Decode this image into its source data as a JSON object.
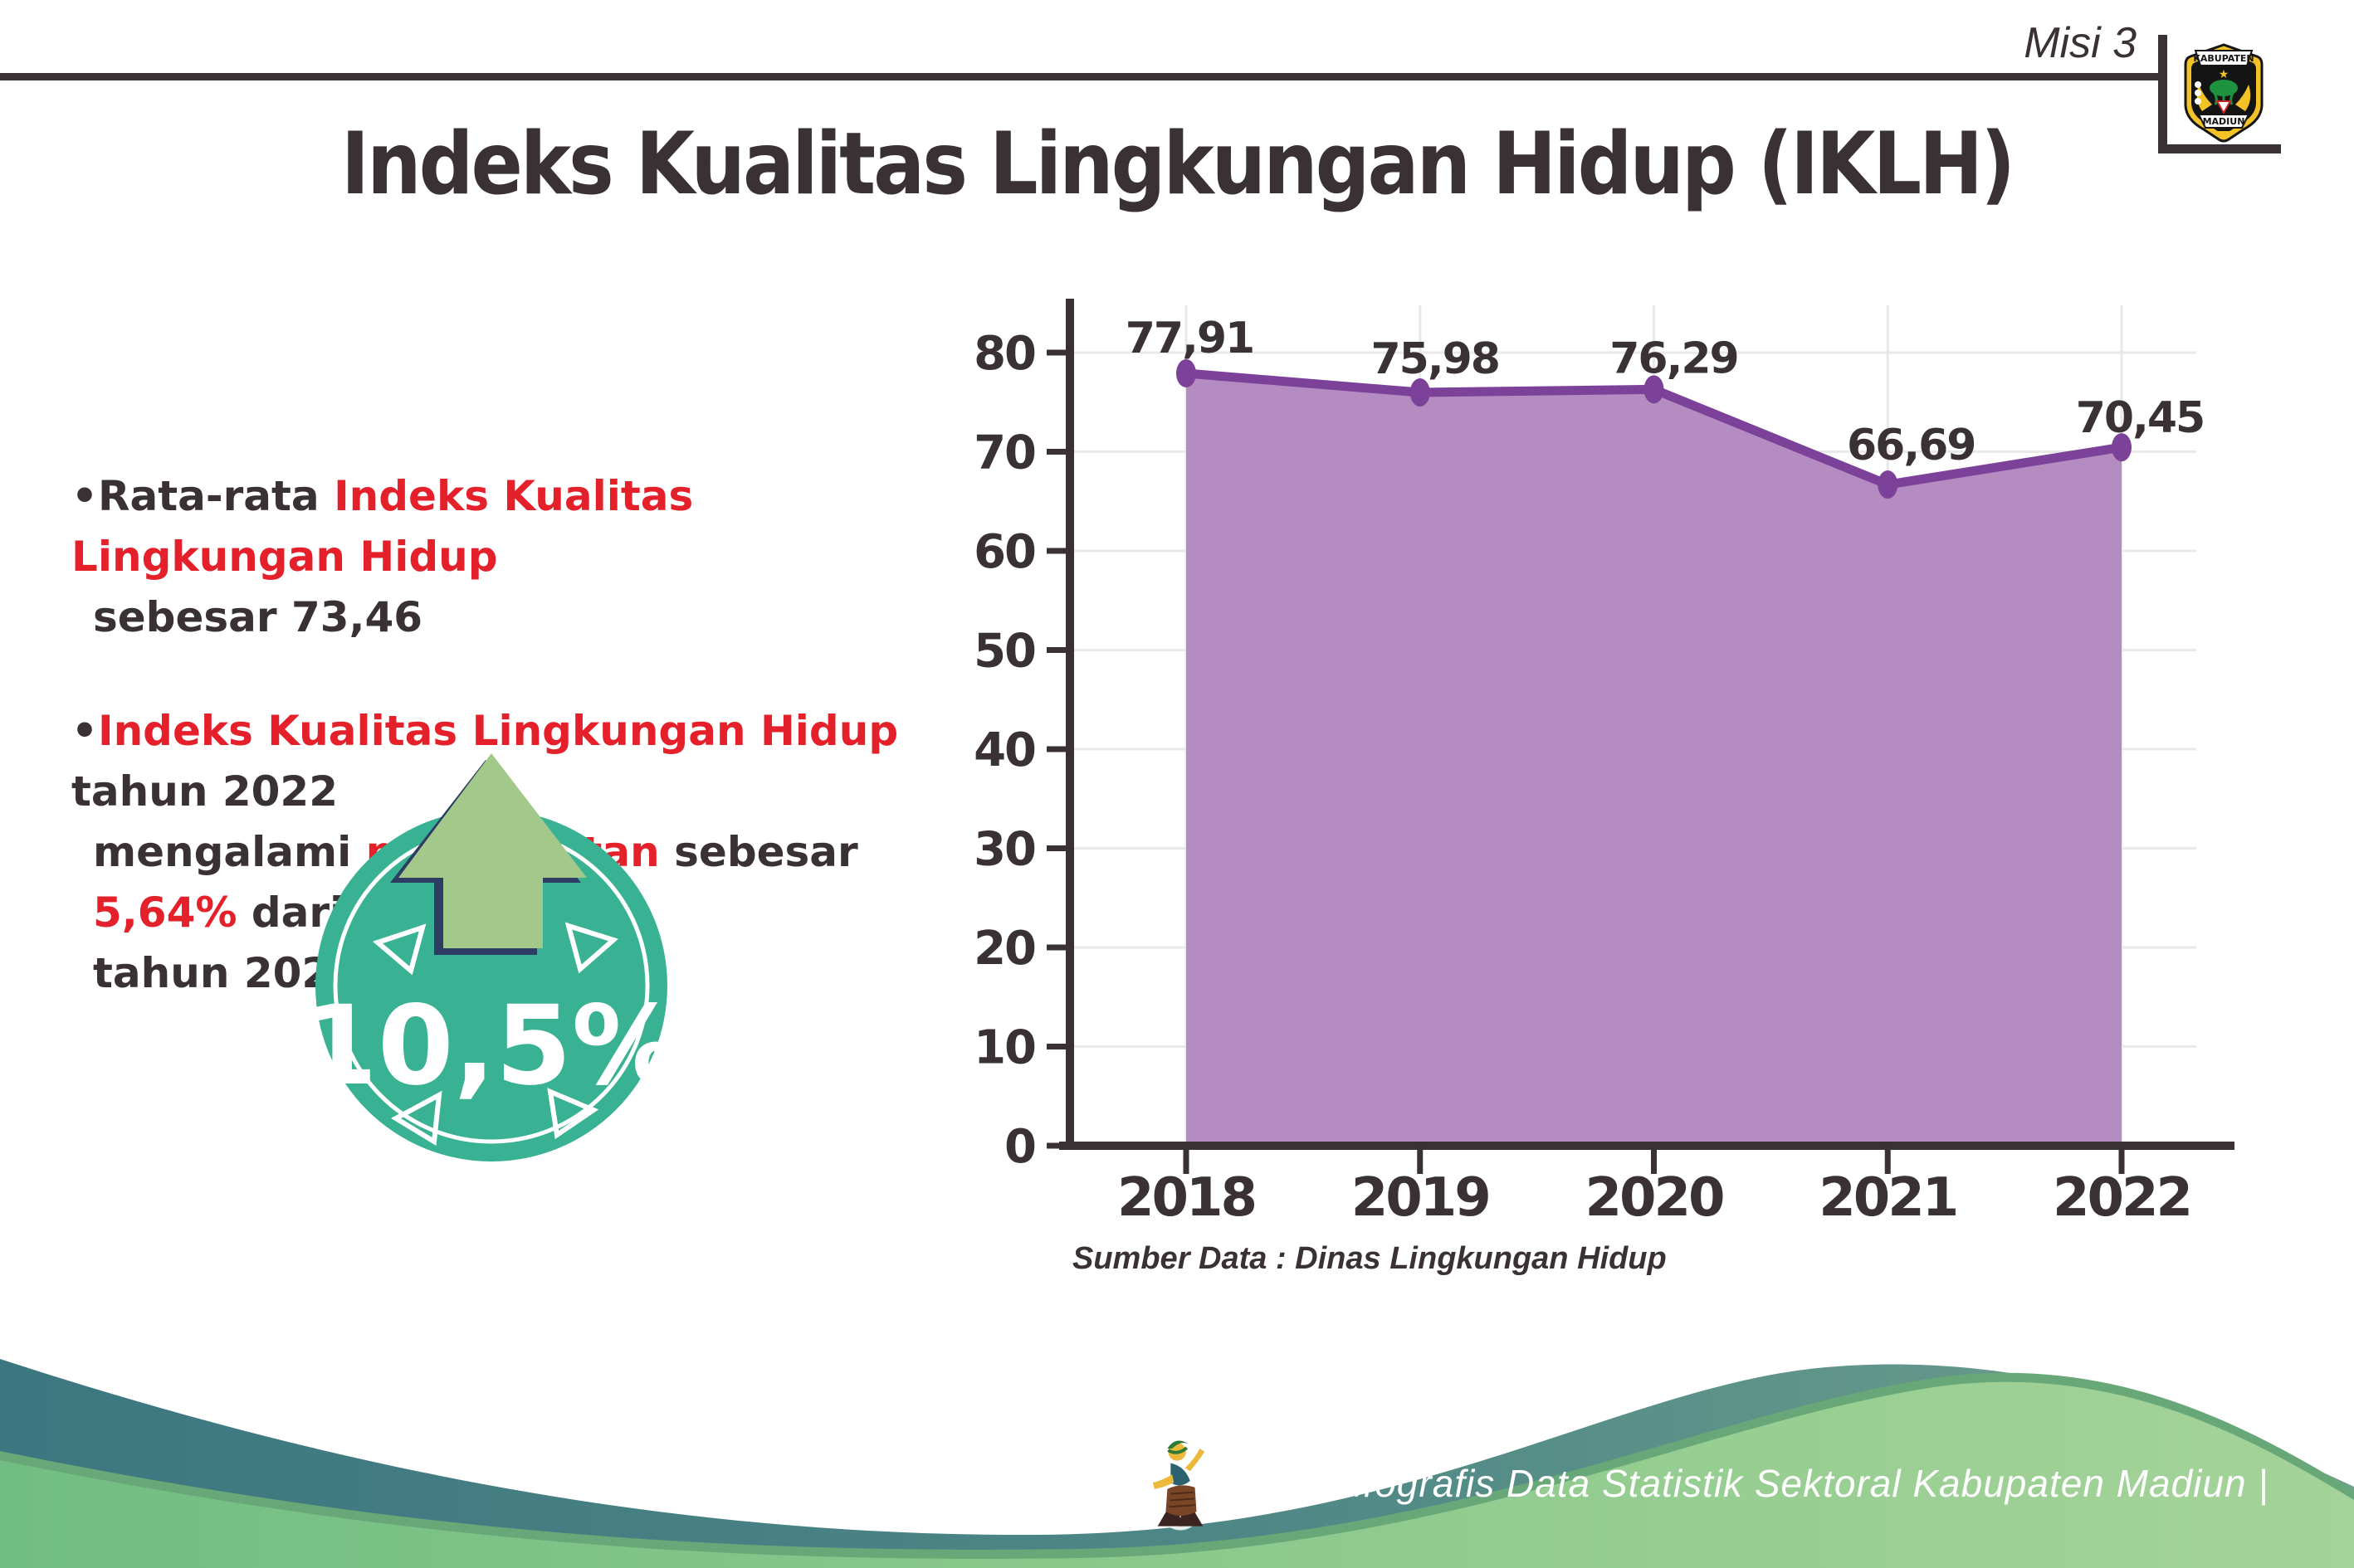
{
  "header": {
    "mission_label": "Misi 3",
    "logo": {
      "top_banner": "KABUPATEN",
      "bottom_banner": "MADIUN"
    }
  },
  "title": "Indeks Kualitas Lingkungan Hidup (IKLH)",
  "bullets": {
    "b1": {
      "bullet": "•",
      "prefix": "Rata-rata ",
      "highlight": "Indeks Kualitas Lingkungan Hidup",
      "line2": "sebesar 73,46"
    },
    "b2": {
      "bullet": "•",
      "highlight1": "Indeks Kualitas Lingkungan Hidup",
      "rest1": " tahun 2022",
      "line2_pre": "mengalami ",
      "highlight2": "peningkatan",
      "line2_mid": " sebesar ",
      "highlight3": "5,64%",
      "line2_post": " dari",
      "line3": "tahun 2021"
    }
  },
  "badge": {
    "value": "10,5%",
    "icon": "increase-arrow-icon"
  },
  "chart_data": {
    "type": "area",
    "categories": [
      "2018",
      "2019",
      "2020",
      "2021",
      "2022"
    ],
    "values": [
      77.91,
      75.98,
      76.29,
      66.69,
      70.45
    ],
    "value_labels": [
      "77,91",
      "75,98",
      "76,29",
      "66,69",
      "70,45"
    ],
    "title": "",
    "xlabel": "",
    "ylabel": "",
    "ylim": [
      0,
      80
    ],
    "yticks": [
      0,
      10,
      20,
      30,
      40,
      50,
      60,
      70,
      80
    ],
    "grid": true,
    "legend": "none",
    "source": "Sumber Data : Dinas Lingkungan Hidup",
    "colors": {
      "area": "#b48cc2",
      "line": "#7c4198",
      "axis": "#3a3134",
      "grid": "#eae8e9"
    }
  },
  "footer": {
    "caption": "Media Infografis Data Statistik Sektoral Kabupaten Madiun |"
  },
  "icons": {
    "mascot": "dancer-mascot-icon",
    "seal": "kabupaten-madiun-seal",
    "badge_arrow": "up-arrow"
  },
  "colors": {
    "text_dark": "#3a3134",
    "text_red": "#e4212b",
    "badge_teal": "#38b292",
    "badge_arrow_green": "#a3c98a",
    "badge_arrow_outline": "#2d3c63",
    "footer_teal": "#3c7680",
    "footer_green": "#7cc287",
    "footer_green_edge": "#68a878"
  }
}
